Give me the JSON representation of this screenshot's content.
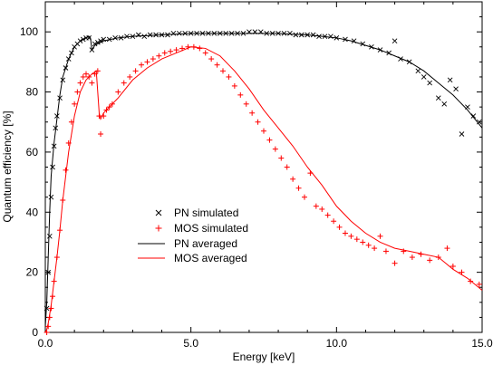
{
  "chart_data": {
    "type": "scatter",
    "xlabel": "Energy [keV]",
    "ylabel": "Quantum efficiency [%]",
    "xlim": [
      0,
      15
    ],
    "ylim": [
      0,
      110
    ],
    "x_ticks": [
      0,
      5,
      10,
      15
    ],
    "x_tick_labels": [
      "0.0",
      "5.0",
      "10.0",
      "15.0"
    ],
    "y_ticks": [
      0,
      20,
      40,
      60,
      80,
      100
    ],
    "y_tick_labels": [
      "0",
      "20",
      "40",
      "60",
      "80",
      "100"
    ],
    "grid": false,
    "legend_position": "center-left",
    "series": [
      {
        "name": "PN simulated",
        "kind": "markers",
        "marker": "x",
        "color": "#000000",
        "x": [
          0.05,
          0.1,
          0.15,
          0.2,
          0.25,
          0.3,
          0.35,
          0.4,
          0.5,
          0.6,
          0.7,
          0.8,
          0.9,
          1.0,
          1.1,
          1.2,
          1.3,
          1.4,
          1.5,
          1.6,
          1.7,
          1.8,
          1.9,
          2.0,
          2.2,
          2.4,
          2.6,
          2.8,
          3.0,
          3.2,
          3.4,
          3.6,
          3.8,
          4.0,
          4.2,
          4.4,
          4.6,
          4.8,
          5.0,
          5.2,
          5.4,
          5.6,
          5.8,
          6.0,
          6.2,
          6.4,
          6.6,
          6.8,
          7.0,
          7.2,
          7.4,
          7.6,
          7.8,
          8.0,
          8.2,
          8.4,
          8.6,
          8.8,
          9.0,
          9.2,
          9.4,
          9.6,
          9.8,
          10.0,
          10.3,
          10.6,
          10.9,
          11.2,
          11.5,
          11.8,
          12.0,
          12.2,
          12.5,
          12.8,
          13.0,
          13.2,
          13.5,
          13.7,
          13.9,
          14.1,
          14.3,
          14.5,
          14.7,
          14.9
        ],
        "y": [
          8,
          20,
          32,
          45,
          55,
          62,
          68,
          72,
          78,
          84,
          88,
          91,
          93,
          95,
          96,
          97,
          97.5,
          98,
          98,
          94,
          96,
          96.5,
          97,
          97.5,
          97.5,
          98,
          98,
          98.5,
          98.5,
          99,
          98.5,
          99,
          99,
          99,
          99,
          99.5,
          99.5,
          99.5,
          99.5,
          99.5,
          99.5,
          99.5,
          99.5,
          99.5,
          99.5,
          99.5,
          99.5,
          99.5,
          100,
          100,
          100,
          99.5,
          99.5,
          99.5,
          99.5,
          99.5,
          99,
          99,
          99,
          99,
          98.5,
          98.5,
          98.5,
          98,
          97.5,
          97,
          96,
          95,
          94,
          93,
          97,
          91,
          90,
          87,
          85,
          83,
          78,
          76,
          84,
          81,
          66,
          75,
          72,
          70
        ]
      },
      {
        "name": "MOS simulated",
        "kind": "markers",
        "marker": "+",
        "color": "#ff0000",
        "x": [
          0.05,
          0.1,
          0.15,
          0.2,
          0.25,
          0.3,
          0.4,
          0.5,
          0.6,
          0.7,
          0.8,
          0.9,
          1.0,
          1.1,
          1.2,
          1.3,
          1.4,
          1.5,
          1.6,
          1.7,
          1.8,
          1.85,
          1.9,
          2.0,
          2.1,
          2.2,
          2.3,
          2.5,
          2.7,
          2.9,
          3.1,
          3.3,
          3.5,
          3.7,
          3.9,
          4.1,
          4.3,
          4.5,
          4.7,
          4.9,
          5.1,
          5.3,
          5.5,
          5.7,
          5.9,
          6.1,
          6.3,
          6.5,
          6.7,
          6.9,
          7.1,
          7.3,
          7.5,
          7.7,
          7.9,
          8.1,
          8.3,
          8.5,
          8.7,
          8.9,
          9.1,
          9.3,
          9.5,
          9.7,
          9.9,
          10.1,
          10.3,
          10.5,
          10.7,
          10.9,
          11.1,
          11.3,
          11.5,
          11.7,
          12.0,
          12.3,
          12.6,
          12.9,
          13.2,
          13.5,
          13.8,
          14.0,
          14.3,
          14.6,
          14.9
        ],
        "y": [
          0,
          2,
          5,
          8,
          12,
          17,
          25,
          34,
          44,
          54,
          63,
          70,
          76,
          80,
          83,
          85,
          86,
          85,
          83,
          86,
          87,
          72,
          66,
          72,
          74,
          75,
          76,
          80,
          83,
          85,
          87,
          89,
          90,
          91,
          92,
          93,
          93.5,
          94,
          94.5,
          95,
          95,
          94.5,
          93,
          91,
          89,
          87,
          85,
          82,
          79,
          76,
          73,
          70,
          67,
          64,
          61,
          58,
          55,
          51,
          48,
          45,
          53,
          42,
          41,
          39,
          37,
          35,
          33,
          32,
          31,
          30,
          29,
          28,
          32,
          27,
          23,
          27,
          25,
          26,
          24,
          25,
          28,
          22,
          20,
          17,
          16
        ]
      },
      {
        "name": "PN averaged",
        "kind": "line",
        "color": "#000000",
        "x": [
          0.0,
          0.05,
          0.1,
          0.15,
          0.2,
          0.3,
          0.4,
          0.5,
          0.6,
          0.8,
          1.0,
          1.2,
          1.4,
          1.5,
          1.55,
          1.6,
          1.7,
          1.8,
          2.0,
          2.5,
          3.0,
          4.0,
          5.0,
          6.0,
          7.0,
          7.5,
          8.0,
          8.5,
          9.0,
          9.5,
          10.0,
          10.5,
          11.0,
          11.5,
          12.0,
          12.5,
          13.0,
          13.5,
          14.0,
          14.5,
          15.0
        ],
        "y": [
          2,
          10,
          25,
          40,
          52,
          63,
          71,
          79,
          85,
          91,
          95,
          97,
          98,
          98.5,
          98,
          94,
          95.5,
          96,
          97,
          98,
          98.5,
          99,
          99.5,
          99.5,
          99.5,
          99.5,
          99.5,
          99.2,
          99,
          98.5,
          98,
          97,
          95.5,
          94,
          92,
          90,
          87,
          83,
          79,
          74,
          68
        ]
      },
      {
        "name": "MOS averaged",
        "kind": "line",
        "color": "#ff0000",
        "x": [
          0.0,
          0.05,
          0.1,
          0.2,
          0.3,
          0.4,
          0.5,
          0.6,
          0.8,
          1.0,
          1.2,
          1.4,
          1.6,
          1.75,
          1.8,
          1.85,
          1.9,
          2.0,
          2.5,
          3.0,
          3.5,
          4.0,
          4.5,
          5.0,
          5.5,
          6.0,
          6.5,
          7.0,
          7.5,
          8.0,
          8.5,
          9.0,
          9.5,
          10.0,
          10.5,
          11.0,
          11.5,
          12.0,
          12.5,
          13.0,
          13.5,
          14.0,
          14.5,
          15.0
        ],
        "y": [
          0,
          1,
          3,
          9,
          17,
          25,
          34,
          44,
          60,
          72,
          80,
          84,
          86,
          87,
          80,
          73,
          71,
          73,
          78,
          84,
          88,
          91,
          93,
          95,
          94.5,
          92,
          87,
          81,
          74,
          68,
          62,
          55,
          49,
          42,
          37,
          33,
          30,
          28,
          27,
          26,
          25,
          21,
          18,
          14
        ]
      }
    ]
  }
}
